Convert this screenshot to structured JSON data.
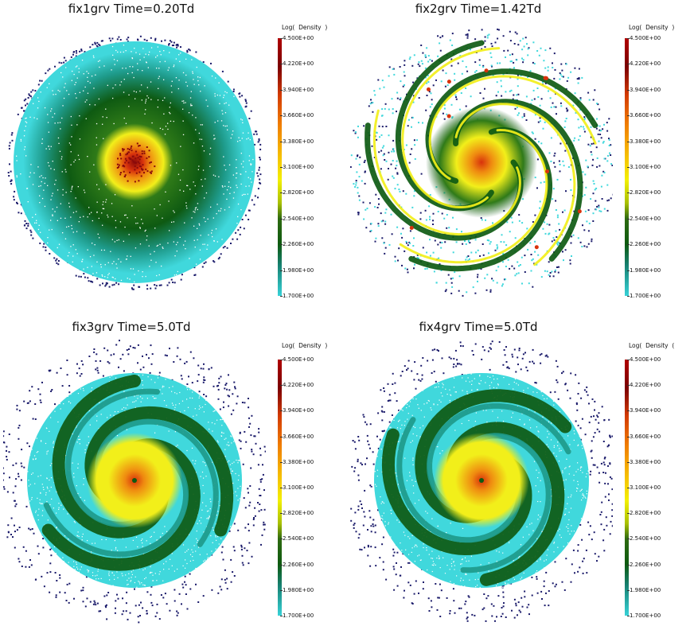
{
  "panels": [
    {
      "title": "fix1grv Time=0.20Td",
      "colorbar_label": "Log(  Density  )",
      "ticks": [
        "4.500E+00",
        "4.220E+00",
        "3.940E+00",
        "3.660E+00",
        "3.380E+00",
        "3.100E+00",
        "2.820E+00",
        "2.540E+00",
        "2.260E+00",
        "1.980E+00",
        "1.700E+00"
      ]
    },
    {
      "title": "fix2grv Time=1.42Td",
      "colorbar_label": "Log(  Density  )",
      "ticks": [
        "4.500E+00",
        "4.220E+00",
        "3.940E+00",
        "3.660E+00",
        "3.380E+00",
        "3.100E+00",
        "2.820E+00",
        "2.540E+00",
        "2.260E+00",
        "1.980E+00",
        "1.700E+00"
      ]
    },
    {
      "title": "fix3grv Time=5.0Td",
      "colorbar_label": "Log(  Density  )",
      "ticks": [
        "4.500E+00",
        "4.220E+00",
        "3.940E+00",
        "3.660E+00",
        "3.380E+00",
        "3.100E+00",
        "2.820E+00",
        "2.540E+00",
        "2.260E+00",
        "1.980E+00",
        "1.700E+00"
      ]
    },
    {
      "title": "fix4grv Time=5.0Td",
      "colorbar_label": "Log(  Density  (",
      "ticks": [
        "4.500E+00",
        "4.220E+00",
        "3.940E+00",
        "3.660E+00",
        "3.380E+00",
        "3.100E+00",
        "2.820E+00",
        "2.540E+00",
        "2.260E+00",
        "1.980E+00",
        "1.700E+00"
      ]
    }
  ],
  "colors": {
    "cyan": "#40d8dc",
    "teal": "#1e9a8a",
    "dark_green": "#0e5a12",
    "green": "#2f7a18",
    "yellow": "#f2ef1a",
    "orange": "#ef8a10",
    "red": "#d8320c",
    "dark_red": "#8a0a0a",
    "navy": "#1a1a6a"
  }
}
